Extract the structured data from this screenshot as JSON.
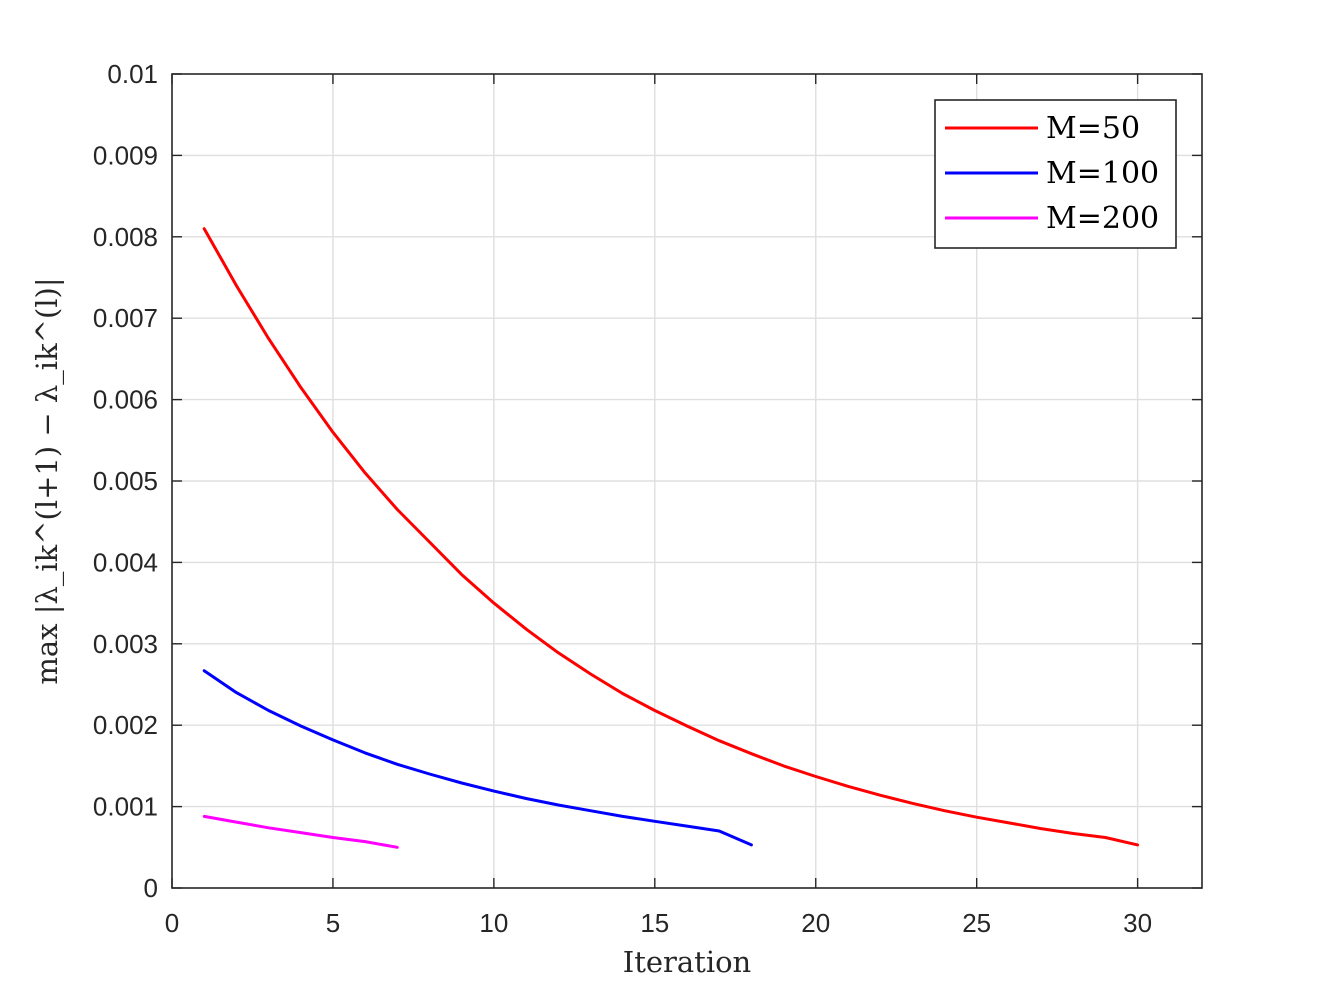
{
  "chart_data": {
    "type": "line",
    "xlabel": "Iteration",
    "ylabel": "max |λ_ik^(l+1) − λ_ik^(l)|",
    "xlim": [
      0,
      32
    ],
    "ylim": [
      0,
      0.01
    ],
    "xticks": [
      0,
      5,
      10,
      15,
      20,
      25,
      30
    ],
    "xtick_labels": [
      "0",
      "5",
      "10",
      "15",
      "20",
      "25",
      "30"
    ],
    "yticks": [
      0,
      0.001,
      0.002,
      0.003,
      0.004,
      0.005,
      0.006,
      0.007,
      0.008,
      0.009,
      0.01
    ],
    "ytick_labels": [
      "0",
      "0.001",
      "0.002",
      "0.003",
      "0.004",
      "0.005",
      "0.006",
      "0.007",
      "0.008",
      "0.009",
      "0.01"
    ],
    "grid": true,
    "legend_position": "top-right",
    "series": [
      {
        "name": "M=50",
        "color": "#ff0000",
        "x": [
          1,
          2,
          3,
          4,
          5,
          6,
          7,
          8,
          9,
          10,
          11,
          12,
          13,
          14,
          15,
          16,
          17,
          18,
          19,
          20,
          21,
          22,
          23,
          24,
          25,
          26,
          27,
          28,
          29,
          30
        ],
        "values": [
          0.0081,
          0.0074,
          0.00675,
          0.00615,
          0.0056,
          0.0051,
          0.00465,
          0.00425,
          0.00385,
          0.0035,
          0.00318,
          0.00289,
          0.00263,
          0.00239,
          0.00218,
          0.00199,
          0.00181,
          0.00165,
          0.0015,
          0.00137,
          0.00125,
          0.00114,
          0.00104,
          0.00095,
          0.00087,
          0.0008,
          0.00073,
          0.00067,
          0.00062,
          0.00053
        ]
      },
      {
        "name": "M=100",
        "color": "#0000ff",
        "x": [
          1,
          2,
          3,
          4,
          5,
          6,
          7,
          8,
          9,
          10,
          11,
          12,
          13,
          14,
          15,
          16,
          17,
          18
        ],
        "values": [
          0.00267,
          0.0024,
          0.00218,
          0.00199,
          0.00182,
          0.00166,
          0.00152,
          0.0014,
          0.00129,
          0.00119,
          0.0011,
          0.00102,
          0.00095,
          0.00088,
          0.00082,
          0.00076,
          0.0007,
          0.00053
        ]
      },
      {
        "name": "M=200",
        "color": "#ff00ff",
        "x": [
          1,
          2,
          3,
          4,
          5,
          6,
          7
        ],
        "values": [
          0.00088,
          0.00081,
          0.00074,
          0.00068,
          0.00062,
          0.00057,
          0.0005
        ]
      }
    ]
  }
}
